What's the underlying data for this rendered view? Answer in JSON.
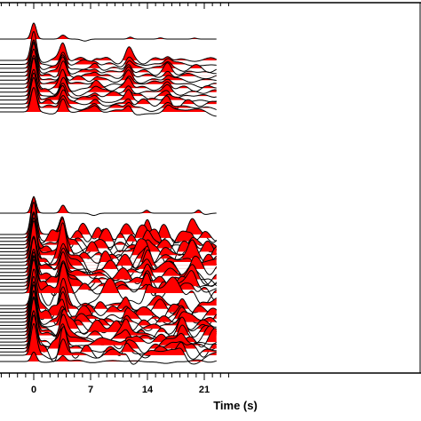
{
  "chart_data": {
    "type": "wiggle-trace seismogram section",
    "xlabel": "Time (s)",
    "x_ticks": [
      0,
      7,
      14,
      21
    ],
    "x_min_visible": -3.1,
    "x_max_visible": 21.8,
    "fill_color": "#ff0000",
    "line_color": "#000000",
    "panels": [
      {
        "name": "upper-section",
        "reference_trace": {
          "pulses": [
            [
              0,
              1.0,
              0.45
            ],
            [
              3.6,
              0.25,
              0.5
            ],
            [
              11.9,
              0.12,
              0.4
            ],
            [
              15.6,
              0.08,
              0.4
            ],
            [
              19.8,
              0.06,
              0.4
            ]
          ],
          "troughs": [
            [
              6.3,
              0.12,
              0.6
            ]
          ]
        },
        "traces_per_group": [
          {
            "traces": 14,
            "noise": 0.22,
            "pulses": [
              [
                0,
                1.6,
                0.5
              ],
              [
                3.6,
                0.9,
                0.55
              ],
              [
                7.6,
                0.3,
                0.6
              ],
              [
                11.7,
                0.5,
                0.55
              ],
              [
                16.5,
                0.35,
                0.6
              ]
            ]
          }
        ]
      },
      {
        "name": "lower-section",
        "reference_trace": {
          "pulses": [
            [
              0,
              1.0,
              0.45
            ],
            [
              3.6,
              0.5,
              0.45
            ],
            [
              13.9,
              0.18,
              0.4
            ],
            [
              20.3,
              0.2,
              0.4
            ]
          ],
          "troughs": [
            [
              7.4,
              0.14,
              0.6
            ],
            [
              21.2,
              0.08,
              0.6
            ]
          ]
        },
        "traces_per_group": [
          {
            "traces": 18,
            "noise": 0.75,
            "pulses": [
              [
                0,
                2.0,
                0.5
              ],
              [
                3.6,
                1.3,
                0.55
              ],
              [
                14.0,
                0.6,
                0.55
              ],
              [
                19.5,
                0.45,
                0.6
              ]
            ]
          },
          {
            "traces": 16,
            "noise": 0.6,
            "pulses": [
              [
                0,
                2.0,
                0.5
              ],
              [
                3.6,
                1.1,
                0.55
              ],
              [
                11.4,
                0.5,
                0.55
              ],
              [
                18.2,
                0.4,
                0.6
              ]
            ]
          }
        ],
        "trailing_trace": {
          "pulses": [
            [
              0,
              0.6,
              0.45
            ],
            [
              3.6,
              0.35,
              0.5
            ]
          ]
        }
      }
    ]
  }
}
